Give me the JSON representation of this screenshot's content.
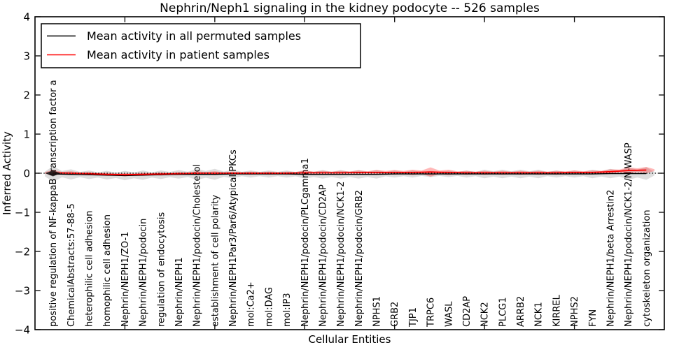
{
  "chart_data": {
    "type": "line",
    "title": "Nephrin/Neph1 signaling in the kidney podocyte -- 526 samples",
    "xlabel": "Cellular Entities",
    "ylabel": "Inferred Activity",
    "ylim": [
      -4,
      4
    ],
    "xlim": [
      0,
      35
    ],
    "grid": false,
    "legend_position": "upper left",
    "ytick_labels": [
      "4",
      "3",
      "2",
      "1",
      "0",
      "−1",
      "−2",
      "−3",
      "−4"
    ],
    "ytick_values": [
      4,
      3,
      2,
      1,
      0,
      -1,
      -2,
      -3,
      -4
    ],
    "x_minor_tick_positions": [
      5,
      10,
      15,
      20,
      25,
      30
    ],
    "categories": [
      "positive regulation of NF-kappaB transcription factor a",
      "ChemicalAbstracts:57-88-5",
      "heterophilic cell adhesion",
      "homophilic cell adhesion",
      "Nephrin/NEPH1/ZO-1",
      "Nephrin/NEPH1/podocin",
      "regulation of endocytosis",
      "Nephrin/NEPH1",
      "Nephrin/NEPH1/podocin/Cholesterol",
      "establishment of cell polarity",
      "Nephrin/NEPH1Par3/Par6/Atypical PKCs",
      "mol:Ca2+",
      "mol:DAG",
      "mol:IP3",
      "Nephrin/NEPH1/podocin/PLCgamma1",
      "Nephrin/NEPH1/podocin/CD2AP",
      "Nephrin/NEPH1/podocin/NCK1-2",
      "Nephrin/NEPH1/podocin/GRB2",
      "NPHS1",
      "GRB2",
      "TJP1",
      "TRPC6",
      "WASL",
      "CD2AP",
      "NCK2",
      "PLCG1",
      "ARRB2",
      "NCK1",
      "KIRREL",
      "NPHS2",
      "FYN",
      "Nephrin/NEPH1/beta Arrestin2",
      "Nephrin/NEPH1/podocin/NCK1-2/N-WASP",
      "cytoskeleton organization"
    ],
    "series": [
      {
        "name": "Mean activity in all permuted samples",
        "color": "#000000",
        "values": [
          -0.02,
          -0.03,
          -0.04,
          -0.05,
          -0.06,
          -0.05,
          -0.04,
          -0.03,
          -0.03,
          -0.03,
          -0.02,
          -0.02,
          -0.02,
          -0.02,
          -0.03,
          -0.03,
          -0.03,
          -0.03,
          -0.03,
          -0.02,
          -0.02,
          -0.02,
          -0.02,
          -0.02,
          -0.02,
          -0.02,
          -0.02,
          -0.02,
          -0.02,
          -0.02,
          -0.02,
          -0.01,
          -0.01,
          -0.01
        ]
      },
      {
        "name": "Mean activity in patient samples",
        "color": "#ff0000",
        "values": [
          0.01,
          0.0,
          -0.01,
          -0.03,
          -0.04,
          -0.03,
          -0.02,
          -0.01,
          0.0,
          0.0,
          0.0,
          0.0,
          0.0,
          0.0,
          0.01,
          0.01,
          0.01,
          0.02,
          0.02,
          0.02,
          0.02,
          0.03,
          0.02,
          0.01,
          0.01,
          0.01,
          0.01,
          0.01,
          0.01,
          0.02,
          0.02,
          0.04,
          0.07,
          0.08
        ]
      }
    ],
    "bands": [
      {
        "follows_series": 0,
        "color": "#000000",
        "opacity": 0.13,
        "half_widths": [
          0.2,
          0.13,
          0.11,
          0.11,
          0.12,
          0.12,
          0.11,
          0.11,
          0.14,
          0.14,
          0.11,
          0.09,
          0.09,
          0.09,
          0.11,
          0.11,
          0.11,
          0.11,
          0.11,
          0.09,
          0.09,
          0.08,
          0.08,
          0.09,
          0.11,
          0.11,
          0.11,
          0.11,
          0.09,
          0.09,
          0.11,
          0.12,
          0.16,
          0.16
        ]
      },
      {
        "follows_series": 1,
        "color": "#ff0000",
        "opacity": 0.28,
        "half_widths": [
          0.07,
          0.05,
          0.04,
          0.04,
          0.04,
          0.04,
          0.04,
          0.04,
          0.05,
          0.05,
          0.04,
          0.04,
          0.04,
          0.04,
          0.06,
          0.05,
          0.05,
          0.05,
          0.06,
          0.06,
          0.07,
          0.12,
          0.07,
          0.05,
          0.05,
          0.05,
          0.05,
          0.05,
          0.05,
          0.05,
          0.05,
          0.06,
          0.08,
          0.08
        ]
      }
    ],
    "zero_line": {
      "value": 0,
      "style": "dotted",
      "color": "#000000"
    },
    "marker": {
      "category_index": 0,
      "value": 0.0,
      "shape": "diamond",
      "color": "#111111"
    }
  }
}
